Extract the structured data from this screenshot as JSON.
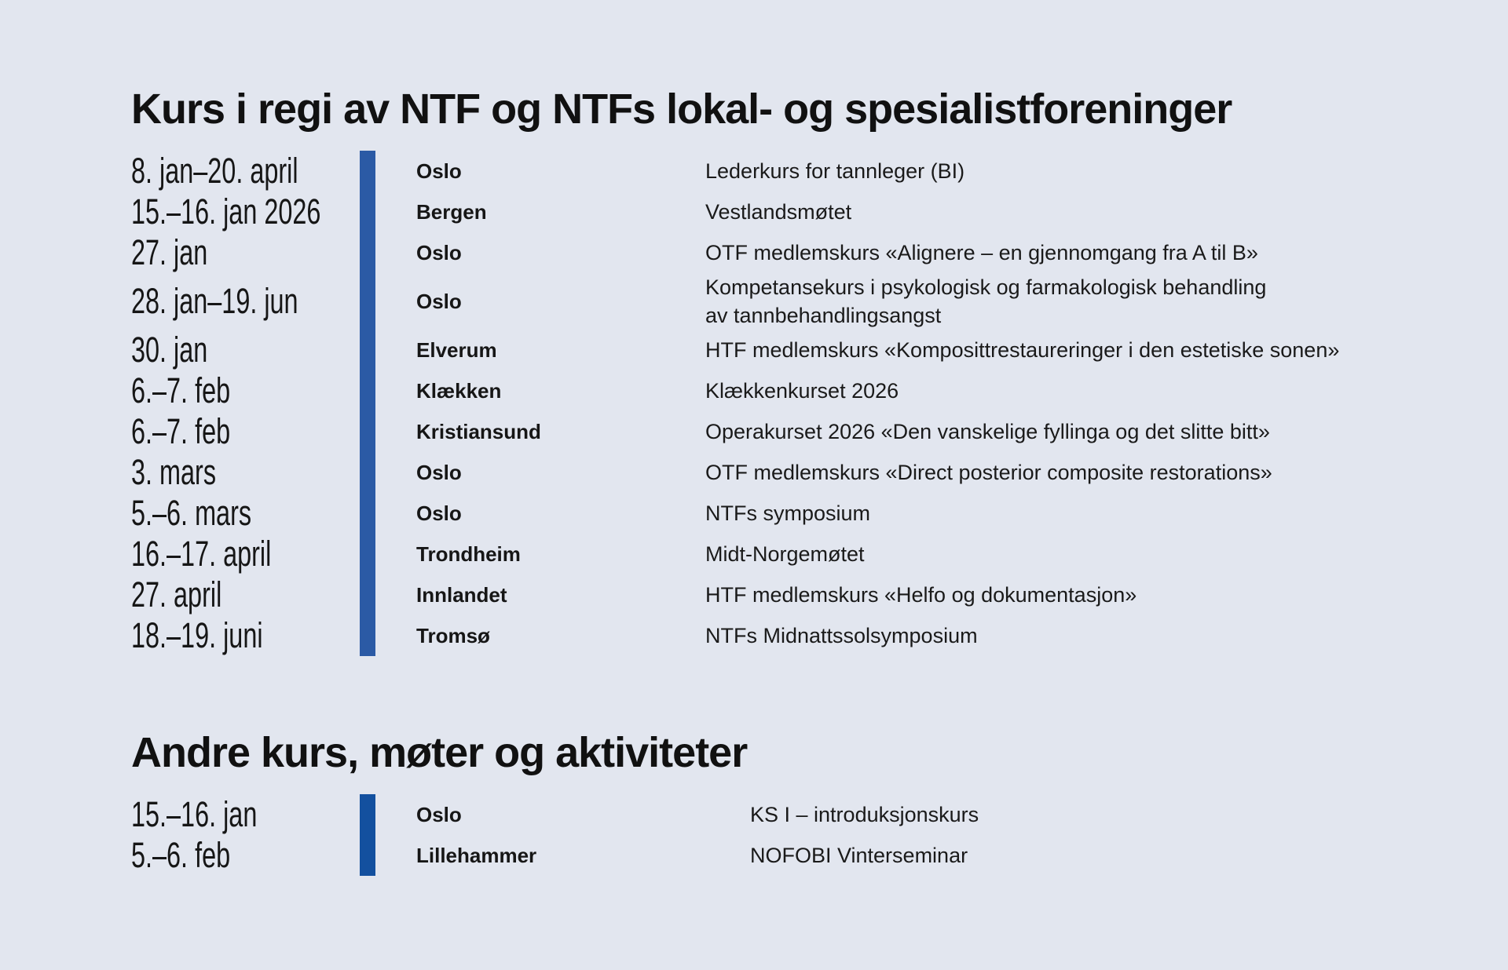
{
  "page": {
    "background_color": "#e2e6ef",
    "text_color": "#161616"
  },
  "sections": [
    {
      "title": "Kurs i regi av NTF og NTFs lokal- og spesialistforeninger",
      "bar_color": "#2b5aa5",
      "rows": [
        {
          "date": "8. jan–20. april",
          "location": "Oslo",
          "course": "Lederkurs for tannleger (BI)"
        },
        {
          "date": "15.–16. jan 2026",
          "location": "Bergen",
          "course": "Vestlandsmøtet"
        },
        {
          "date": "27. jan",
          "location": "Oslo",
          "course": "OTF medlemskurs «Alignere – en gjennomgang fra A til B»"
        },
        {
          "date": "28. jan–19. jun",
          "location": "Oslo",
          "course": "Kompetansekurs i psykologisk og farmakologisk behandling\nav tannbehandlingsangst"
        },
        {
          "date": "30. jan",
          "location": "Elverum",
          "course": "HTF medlemskurs «Komposittrestaureringer i den estetiske sonen»"
        },
        {
          "date": "6.–7. feb",
          "location": "Klækken",
          "course": "Klækkenkurset 2026"
        },
        {
          "date": "6.–7. feb",
          "location": "Kristiansund",
          "course": "Operakurset 2026 «Den vanskelige fyllinga og det slitte bitt»"
        },
        {
          "date": "3. mars",
          "location": "Oslo",
          "course": "OTF medlemskurs «Direct posterior composite restorations»"
        },
        {
          "date": "5.–6. mars",
          "location": "Oslo",
          "course": "NTFs symposium"
        },
        {
          "date": "16.–17. april",
          "location": "Trondheim",
          "course": "Midt-Norgemøtet"
        },
        {
          "date": "27. april",
          "location": "Innlandet",
          "course": "HTF medlemskurs «Helfo og dokumentasjon»"
        },
        {
          "date": "18.–19. juni",
          "location": "Tromsø",
          "course": "NTFs Midnattssolsymposium"
        }
      ]
    },
    {
      "title": "Andre kurs, møter og aktiviteter",
      "bar_color": "#13509f",
      "rows": [
        {
          "date": "15.–16. jan",
          "location": "Oslo",
          "course": "KS I – introduksjonskurs"
        },
        {
          "date": "5.–6. feb",
          "location": "Lillehammer",
          "course": "NOFOBI Vinterseminar"
        }
      ]
    }
  ]
}
